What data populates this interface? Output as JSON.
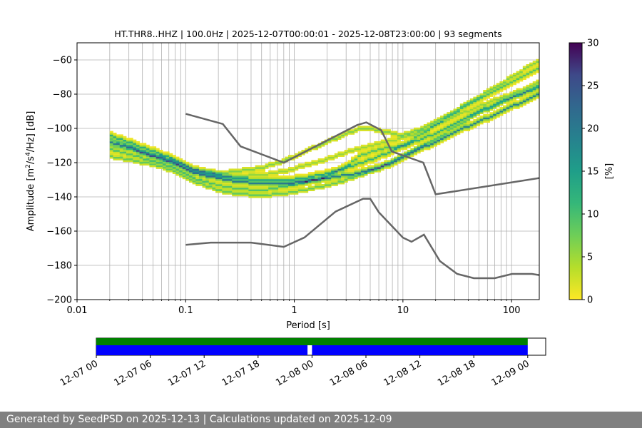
{
  "chart_data": [
    {
      "type": "heatmap",
      "title": "HT.THR8..HHZ | 100.0Hz | 2025-12-07T00:00:01 - 2025-12-08T23:00:00 | 93 segments",
      "xlabel": "Period [s]",
      "ylabel_main": "Amplitude [m",
      "ylabel_sup1": "2",
      "ylabel_mid": "/s",
      "ylabel_sup2": "4",
      "ylabel_tail": "/Hz] [dB]",
      "xscale": "log",
      "xlim": [
        0.01,
        180
      ],
      "ylim": [
        -200,
        -50
      ],
      "x_ticks": [
        {
          "value": 0.01,
          "label": "0.01"
        },
        {
          "value": 0.1,
          "label": "0.1"
        },
        {
          "value": 1,
          "label": "1"
        },
        {
          "value": 10,
          "label": "10"
        },
        {
          "value": 100,
          "label": "100"
        }
      ],
      "y_ticks": [
        {
          "value": -60,
          "label": "−60"
        },
        {
          "value": -80,
          "label": "−80"
        },
        {
          "value": -100,
          "label": "−100"
        },
        {
          "value": -120,
          "label": "−120"
        },
        {
          "value": -140,
          "label": "−140"
        },
        {
          "value": -160,
          "label": "−160"
        },
        {
          "value": -180,
          "label": "−180"
        },
        {
          "value": -200,
          "label": "−200"
        }
      ],
      "colorbar": {
        "label": "[%]",
        "min": 0,
        "max": 30,
        "ticks": [
          {
            "value": 0,
            "label": "0"
          },
          {
            "value": 5,
            "label": "5"
          },
          {
            "value": 10,
            "label": "10"
          },
          {
            "value": 15,
            "label": "15"
          },
          {
            "value": 20,
            "label": "20"
          },
          {
            "value": 25,
            "label": "25"
          },
          {
            "value": 30,
            "label": "30"
          }
        ],
        "colormap": "viridis_r"
      },
      "psd_curves": [
        {
          "period": [
            0.02,
            0.03,
            0.05,
            0.08,
            0.12,
            0.2,
            0.3,
            0.5,
            0.8,
            1.2,
            2,
            3,
            4,
            5,
            6,
            8,
            10,
            15,
            20,
            30,
            50,
            80,
            120,
            180
          ],
          "db": [
            -108,
            -111,
            -116,
            -120,
            -126,
            -129,
            -131,
            -132,
            -132,
            -131,
            -129,
            -127,
            -126,
            -124,
            -123,
            -120,
            -117,
            -111,
            -108,
            -102,
            -96,
            -90,
            -85,
            -80
          ],
          "weight": 14
        },
        {
          "period": [
            0.02,
            0.03,
            0.05,
            0.08,
            0.12,
            0.2,
            0.3,
            0.5,
            0.8,
            1.2,
            2,
            3,
            5,
            8,
            12,
            20,
            30,
            50,
            80,
            120,
            180
          ],
          "db": [
            -104,
            -108,
            -113,
            -118,
            -124,
            -127,
            -129,
            -130,
            -130,
            -129,
            -126,
            -123,
            -118,
            -113,
            -108,
            -103,
            -97,
            -90,
            -84,
            -80,
            -76
          ],
          "weight": 9
        },
        {
          "period": [
            0.02,
            0.03,
            0.05,
            0.08,
            0.12,
            0.2,
            0.3,
            0.5,
            0.8,
            1.2,
            2,
            3,
            4,
            6,
            10,
            15,
            25,
            40,
            70,
            120,
            180
          ],
          "db": [
            -112,
            -115,
            -119,
            -123,
            -129,
            -133,
            -135,
            -136,
            -134,
            -132,
            -128,
            -122,
            -116,
            -112,
            -110,
            -103,
            -94,
            -86,
            -78,
            -70,
            -65
          ],
          "weight": 7
        },
        {
          "period": [
            0.02,
            0.03,
            0.05,
            0.08,
            0.12,
            0.2,
            0.3,
            0.5,
            0.8,
            1.2,
            2,
            3,
            4,
            5,
            7,
            10,
            15,
            25,
            40,
            70,
            120,
            180
          ],
          "db": [
            -106,
            -110,
            -115,
            -119,
            -124,
            -126,
            -125,
            -123,
            -119,
            -114,
            -108,
            -103,
            -100,
            -100,
            -102,
            -104,
            -100,
            -93,
            -85,
            -76,
            -67,
            -60
          ],
          "weight": 5
        },
        {
          "period": [
            0.02,
            0.03,
            0.05,
            0.08,
            0.12,
            0.2,
            0.3,
            0.5,
            0.8,
            1.2,
            2,
            3,
            5,
            8,
            12,
            20,
            30,
            50,
            80,
            120,
            180
          ],
          "db": [
            -116,
            -118,
            -121,
            -125,
            -131,
            -136,
            -138,
            -139,
            -138,
            -136,
            -133,
            -130,
            -125,
            -119,
            -113,
            -106,
            -99,
            -91,
            -85,
            -80,
            -74
          ],
          "weight": 6
        },
        {
          "period": [
            0.02,
            0.03,
            0.05,
            0.08,
            0.12,
            0.2,
            0.3,
            0.5,
            0.8,
            1.2,
            2,
            3,
            5,
            8,
            12,
            20,
            30,
            50,
            80,
            120,
            180
          ],
          "db": [
            -110,
            -112,
            -116,
            -121,
            -125,
            -128,
            -128,
            -127,
            -125,
            -122,
            -118,
            -114,
            -110,
            -107,
            -104,
            -98,
            -93,
            -87,
            -82,
            -78,
            -73
          ],
          "weight": 4
        }
      ],
      "nlnm": {
        "period": [
          0.1,
          0.17,
          0.4,
          0.8,
          1.24,
          2.4,
          4.3,
          5,
          6,
          10,
          12,
          15.6,
          21.9,
          31.6,
          45,
          70,
          101,
          154,
          180
        ],
        "db": [
          -168,
          -166.7,
          -166.7,
          -169.2,
          -163.7,
          -148.6,
          -141.1,
          -141.1,
          -149,
          -163.8,
          -166.2,
          -162.1,
          -177.5,
          -185,
          -187.5,
          -187.5,
          -185,
          -185,
          -185.7
        ]
      },
      "nhnm": {
        "period": [
          0.1,
          0.22,
          0.32,
          0.8,
          3.8,
          4.6,
          6.3,
          7.9,
          15.4,
          20,
          180
        ],
        "db": [
          -91.5,
          -97.4,
          -110.5,
          -120,
          -98,
          -96.5,
          -101,
          -113.5,
          -120,
          -138.5,
          -129
        ]
      }
    },
    {
      "type": "timeline",
      "xlim_hours": [
        0,
        50
      ],
      "ticks": [
        {
          "hour": 0,
          "label": "12-07 00"
        },
        {
          "hour": 6,
          "label": "12-07 06"
        },
        {
          "hour": 12,
          "label": "12-07 12"
        },
        {
          "hour": 18,
          "label": "12-07 18"
        },
        {
          "hour": 24,
          "label": "12-08 00"
        },
        {
          "hour": 30,
          "label": "12-08 06"
        },
        {
          "hour": 36,
          "label": "12-08 12"
        },
        {
          "hour": 42,
          "label": "12-08 18"
        },
        {
          "hour": 48,
          "label": "12-09 00"
        }
      ],
      "data_coverage": [
        {
          "start": 0,
          "end": 48
        }
      ],
      "segments_used": [
        {
          "start": 0,
          "end": 23.5
        },
        {
          "start": 24,
          "end": 48
        }
      ],
      "colors": {
        "data": "#008000",
        "used": "#0000ff"
      }
    }
  ],
  "footer": {
    "text": "Generated by SeedPSD on 2025-12-13 | Calculations updated on 2025-12-09"
  }
}
